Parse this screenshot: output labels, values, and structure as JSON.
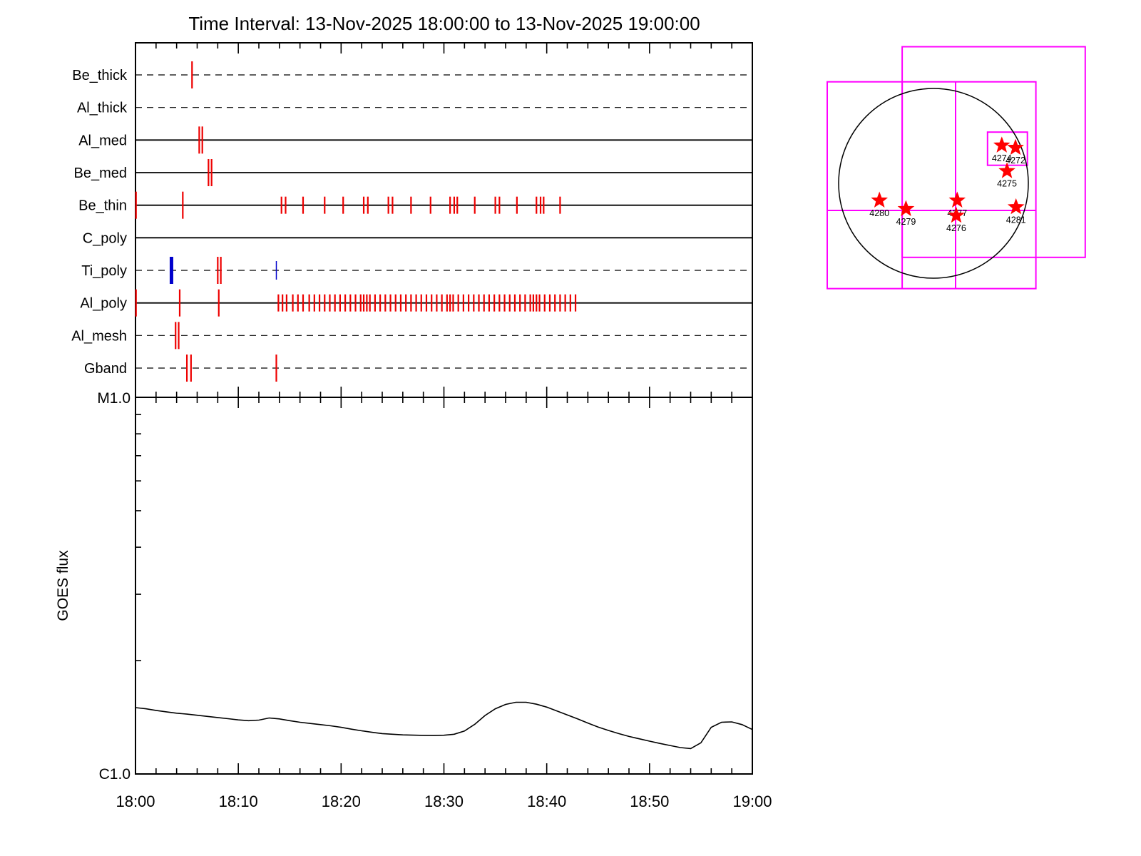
{
  "title": "Time Interval: 13-Nov-2025 18:00:00 to 13-Nov-2025 19:00:00",
  "colors": {
    "exposure_tick": "#ee0000",
    "special_tick": "#0000cc",
    "fov_box": "#ff00ff",
    "star": "#ff0000",
    "axis": "#000000",
    "flux_line": "#000000"
  },
  "chart_data": [
    {
      "type": "scatter",
      "subtype": "event-timeline",
      "x_range_minutes": [
        0,
        60
      ],
      "x_axis_start_label": "18:00",
      "x_axis_end_label": "19:00",
      "rows": [
        {
          "label": "Be_thick",
          "line_style": "dashed",
          "events": [],
          "events_tall": [
            5.5
          ],
          "events_blue_bold": [],
          "events_blue_thin": []
        },
        {
          "label": "Al_thick",
          "line_style": "dashed",
          "events": [],
          "events_tall": [],
          "events_blue_bold": [],
          "events_blue_thin": []
        },
        {
          "label": "Al_med",
          "line_style": "solid",
          "events": [],
          "events_tall": [
            6.2,
            6.5
          ],
          "events_blue_bold": [],
          "events_blue_thin": []
        },
        {
          "label": "Be_med",
          "line_style": "solid",
          "events": [],
          "events_tall": [
            7.1,
            7.4
          ],
          "events_blue_bold": [],
          "events_blue_thin": []
        },
        {
          "label": "Be_thin",
          "line_style": "solid",
          "events": [
            14.2,
            14.6,
            16.3,
            18.4,
            20.2,
            22.2,
            22.6,
            24.6,
            25.0,
            26.8,
            28.7,
            30.6,
            31.0,
            31.3,
            33.0,
            35.0,
            35.4,
            37.1,
            39.0,
            39.4,
            39.7,
            41.3
          ],
          "events_tall": [
            0.05,
            4.6
          ],
          "events_blue_bold": [],
          "events_blue_thin": []
        },
        {
          "label": "C_poly",
          "line_style": "solid",
          "events": [],
          "events_tall": [],
          "events_blue_bold": [],
          "events_blue_thin": []
        },
        {
          "label": "Ti_poly",
          "line_style": "dashed",
          "events": [],
          "events_tall": [
            8.0,
            8.3
          ],
          "events_blue_bold": [
            3.5
          ],
          "events_blue_thin": [
            13.7
          ]
        },
        {
          "label": "Al_poly",
          "line_style": "solid",
          "events": [
            13.9,
            14.3,
            14.7,
            15.3,
            15.8,
            16.3,
            16.9,
            17.4,
            17.9,
            18.4,
            18.9,
            19.4,
            19.9,
            20.4,
            20.9,
            21.4,
            21.9,
            22.2,
            22.5,
            22.8,
            23.3,
            23.8,
            24.3,
            24.8,
            25.3,
            25.8,
            26.3,
            26.8,
            27.3,
            27.8,
            28.3,
            28.8,
            29.3,
            29.8,
            30.3,
            30.6,
            30.9,
            31.4,
            31.9,
            32.4,
            32.9,
            33.4,
            33.9,
            34.4,
            34.9,
            35.4,
            35.9,
            36.4,
            36.9,
            37.4,
            37.9,
            38.4,
            38.7,
            39.0,
            39.3,
            39.8,
            40.3,
            40.8,
            41.3,
            41.8,
            42.3,
            42.8
          ],
          "events_tall": [
            0.05,
            4.3,
            8.1
          ],
          "events_blue_bold": [],
          "events_blue_thin": []
        },
        {
          "label": "Al_mesh",
          "line_style": "dashed",
          "events": [],
          "events_tall": [
            3.9,
            4.2
          ],
          "events_blue_bold": [],
          "events_blue_thin": []
        },
        {
          "label": "Gband",
          "line_style": "dashed",
          "events": [],
          "events_tall": [
            5.0,
            5.4,
            13.7
          ],
          "events_blue_bold": [],
          "events_blue_thin": []
        }
      ]
    },
    {
      "type": "line",
      "name": "goes-flux",
      "ylabel": "GOES flux",
      "y_axis": {
        "scale": "log",
        "bottom_label": "C1.0",
        "top_label": "M1.0",
        "decades": 1
      },
      "x_tick_labels": [
        "18:00",
        "18:10",
        "18:20",
        "18:30",
        "18:40",
        "18:50",
        "19:00"
      ],
      "x_start_minute": 0,
      "x_step_minutes": 1,
      "flux_c_units": [
        1.5,
        1.49,
        1.475,
        1.462,
        1.45,
        1.442,
        1.432,
        1.422,
        1.412,
        1.402,
        1.392,
        1.385,
        1.39,
        1.408,
        1.4,
        1.385,
        1.372,
        1.362,
        1.352,
        1.342,
        1.33,
        1.315,
        1.302,
        1.29,
        1.28,
        1.275,
        1.27,
        1.268,
        1.266,
        1.265,
        1.267,
        1.275,
        1.3,
        1.355,
        1.43,
        1.49,
        1.53,
        1.55,
        1.55,
        1.532,
        1.505,
        1.47,
        1.435,
        1.4,
        1.365,
        1.332,
        1.305,
        1.28,
        1.258,
        1.24,
        1.222,
        1.205,
        1.19,
        1.175,
        1.168,
        1.21,
        1.33,
        1.372,
        1.375,
        1.352,
        1.312
      ]
    },
    {
      "type": "scatter",
      "subtype": "solar-disk-map",
      "units": "solar_radii_screen_y_down",
      "active_regions": [
        {
          "noaa": "4274",
          "x": 0.72,
          "y": -0.4
        },
        {
          "noaa": "4272",
          "x": 0.865,
          "y": -0.375
        },
        {
          "noaa": "4275",
          "x": 0.775,
          "y": -0.13
        },
        {
          "noaa": "4280",
          "x": -0.57,
          "y": 0.18
        },
        {
          "noaa": "4279",
          "x": -0.29,
          "y": 0.27
        },
        {
          "noaa": "4277",
          "x": 0.25,
          "y": 0.18
        },
        {
          "noaa": "4276",
          "x": 0.24,
          "y": 0.34
        },
        {
          "noaa": "4281",
          "x": 0.87,
          "y": 0.25
        }
      ],
      "fov_rects": [
        {
          "x": -1.12,
          "y": -1.07,
          "w": 2.2,
          "h": 2.18
        },
        {
          "x": -0.33,
          "y": -1.44,
          "w": 1.93,
          "h": 2.22
        },
        {
          "x": 0.57,
          "y": -0.54,
          "w": 0.42,
          "h": 0.35
        }
      ],
      "fov_lines": [
        {
          "x1": 0.233,
          "y1": -1.07,
          "x2": 0.233,
          "y2": 1.11
        },
        {
          "x1": -0.33,
          "y1": -1.07,
          "x2": -0.33,
          "y2": 1.11
        },
        {
          "x1": -1.12,
          "y1": 0.286,
          "x2": 1.08,
          "y2": 0.286
        }
      ]
    }
  ]
}
